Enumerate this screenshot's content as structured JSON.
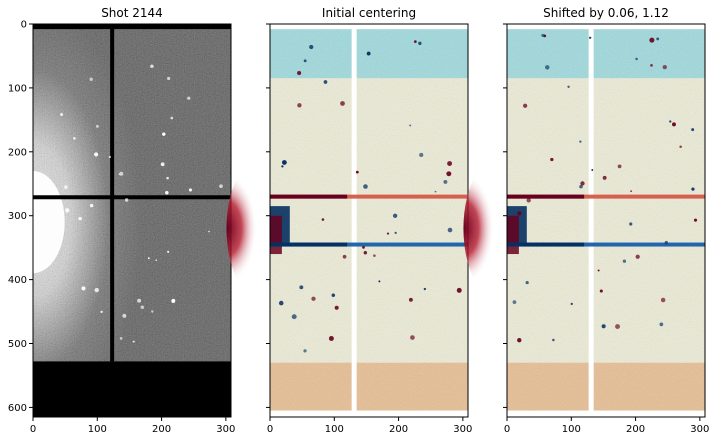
{
  "chart_data": [
    {
      "type": "heatmap",
      "title": "Shot 2144",
      "colormap": "gray",
      "xlim": [
        0,
        308
      ],
      "ylim": [
        615,
        0
      ],
      "x_ticks": [
        0,
        100,
        200,
        300
      ],
      "y_ticks": [
        0,
        100,
        200,
        300,
        400,
        500,
        600
      ],
      "y_tick_labels_visible": true
    },
    {
      "type": "heatmap",
      "title": "Initial centering",
      "colormap": "RdBu",
      "xlim": [
        0,
        308
      ],
      "ylim": [
        615,
        0
      ],
      "x_ticks": [
        0,
        100,
        200,
        300
      ],
      "y_ticks": [
        0,
        100,
        200,
        300,
        400,
        500,
        600
      ],
      "y_tick_labels_visible": false
    },
    {
      "type": "heatmap",
      "title": "Shifted by 0.06, 1.12",
      "colormap": "RdBu",
      "xlim": [
        0,
        308
      ],
      "ylim": [
        615,
        0
      ],
      "x_ticks": [
        0,
        100,
        200,
        300
      ],
      "y_ticks": [
        0,
        100,
        200,
        300,
        400,
        500,
        600
      ],
      "y_tick_labels_visible": false
    }
  ],
  "colors": {
    "axis": "#000000",
    "gray_dark": "#000000",
    "gray_light": "#ffffff",
    "rdbu_red": "#67001f",
    "rdbu_blue": "#053061",
    "rdbu_mid_red": "#f4a582",
    "rdbu_mid_blue": "#92c5de",
    "rdbu_white": "#f7f7f7"
  }
}
